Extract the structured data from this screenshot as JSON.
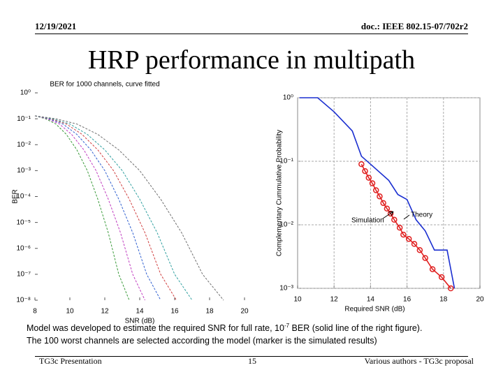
{
  "header": {
    "date": "12/19/2021",
    "doc": "doc.: IEEE 802.15-07/702r2"
  },
  "title": "HRP performance in multipath",
  "chart_data": [
    {
      "type": "line",
      "title": "BER for 1000 channels, curve fitted",
      "xlabel": "SNR (dB)",
      "ylabel": "BER",
      "xlim": [
        8,
        20
      ],
      "xticks": [
        8,
        10,
        12,
        14,
        16,
        18,
        20
      ],
      "log_y": true,
      "grid": false,
      "ylim": [
        1e-08,
        1
      ],
      "yticks": [
        {
          "value": 1,
          "label": "10⁰"
        },
        {
          "value": 0.1,
          "label": "10⁻¹"
        },
        {
          "value": 0.01,
          "label": "10⁻²"
        },
        {
          "value": 0.001,
          "label": "10⁻³"
        },
        {
          "value": 0.0001,
          "label": "10⁻⁴"
        },
        {
          "value": 1e-05,
          "label": "10⁻⁵"
        },
        {
          "value": 1e-06,
          "label": "10⁻⁶"
        },
        {
          "value": 1e-07,
          "label": "10⁻⁷"
        },
        {
          "value": 1e-08,
          "label": "10⁻⁸"
        }
      ],
      "series": [
        {
          "color": "#3a9a3a",
          "x": [
            8,
            8.6,
            9.2,
            9.8,
            10.4,
            11,
            11.6,
            12.2,
            12.8,
            13.4
          ],
          "values": [
            0.13,
            0.1,
            0.063,
            0.025,
            0.0063,
            0.001,
            7.9e-05,
            4e-06,
            1e-07,
            1e-08
          ]
        },
        {
          "color": "#c03cc0",
          "x": [
            8,
            8.7,
            9.4,
            10.1,
            10.8,
            11.5,
            12.2,
            12.9,
            13.6,
            14.3
          ],
          "values": [
            0.13,
            0.1,
            0.063,
            0.025,
            0.0063,
            0.001,
            7.9e-05,
            4e-06,
            1e-07,
            1e-08
          ]
        },
        {
          "color": "#3060d0",
          "x": [
            8,
            8.8,
            9.6,
            10.4,
            11.2,
            12,
            12.8,
            13.6,
            14.4,
            15.2
          ],
          "values": [
            0.13,
            0.1,
            0.063,
            0.025,
            0.0063,
            0.001,
            7.9e-05,
            4e-06,
            1e-07,
            1e-08
          ]
        },
        {
          "color": "#d04040",
          "x": [
            8,
            8.9,
            9.8,
            10.7,
            11.6,
            12.5,
            13.4,
            14.3,
            15.2,
            16.1
          ],
          "values": [
            0.13,
            0.1,
            0.063,
            0.025,
            0.0063,
            0.001,
            7.9e-05,
            4e-06,
            1e-07,
            1e-08
          ]
        },
        {
          "color": "#30a0a0",
          "x": [
            8,
            9,
            10,
            11,
            12,
            13,
            14,
            15,
            16,
            17
          ],
          "values": [
            0.13,
            0.1,
            0.063,
            0.025,
            0.0063,
            0.001,
            7.9e-05,
            4e-06,
            1e-07,
            1e-08
          ]
        },
        {
          "color": "#707070",
          "x": [
            8,
            9.2,
            10.4,
            11.6,
            12.8,
            14,
            15.2,
            16.4,
            17.6,
            18.8
          ],
          "values": [
            0.13,
            0.1,
            0.063,
            0.025,
            0.0063,
            0.001,
            7.9e-05,
            4e-06,
            1e-07,
            1e-08
          ]
        }
      ]
    },
    {
      "type": "line",
      "xlabel": "Required SNR (dB)",
      "ylabel": "Complementary Cummulative Probability",
      "xlim": [
        10,
        20
      ],
      "xticks": [
        10,
        12,
        14,
        16,
        18,
        20
      ],
      "log_y": true,
      "grid": true,
      "ylim": [
        0.001,
        1
      ],
      "yticks": [
        {
          "value": 1,
          "label": "10⁰"
        },
        {
          "value": 0.1,
          "label": "10⁻¹"
        },
        {
          "value": 0.01,
          "label": "10⁻²"
        },
        {
          "value": 0.001,
          "label": "10⁻³"
        }
      ],
      "annotations": [
        "Simulation",
        "Theory"
      ],
      "series": [
        {
          "name": "Theory",
          "color": "#1a2ed0",
          "x": [
            10.1,
            11.1,
            12,
            13,
            13.5,
            14,
            15,
            15.5,
            16,
            16.5,
            17,
            17.5,
            18,
            18.2,
            18.6
          ],
          "values": [
            1,
            1,
            0.6,
            0.3,
            0.12,
            0.09,
            0.05,
            0.03,
            0.025,
            0.012,
            0.008,
            0.004,
            0.004,
            0.004,
            0.001
          ]
        },
        {
          "name": "Simulation",
          "color": "#e02020",
          "marker": "o",
          "x": [
            13.5,
            13.7,
            13.9,
            14.1,
            14.3,
            14.5,
            14.7,
            14.9,
            15.1,
            15.3,
            15.6,
            15.8,
            16.1,
            16.4,
            16.7,
            17,
            17.4,
            17.9,
            18.4
          ],
          "values": [
            0.09,
            0.07,
            0.055,
            0.045,
            0.035,
            0.028,
            0.022,
            0.018,
            0.015,
            0.012,
            0.009,
            0.007,
            0.006,
            0.005,
            0.004,
            0.003,
            0.002,
            0.0015,
            0.001
          ]
        }
      ]
    }
  ],
  "body": {
    "line1_a": "Model was developed to estimate the required SNR for full rate, 10",
    "line1_sup": "-7",
    "line1_b": " BER (solid line of the right figure).",
    "line2": "The 100 worst channels are selected according the model (marker is the simulated results)"
  },
  "footer": {
    "left": "TG3c Presentation",
    "page": "15",
    "right": "Various authors - TG3c proposal"
  }
}
